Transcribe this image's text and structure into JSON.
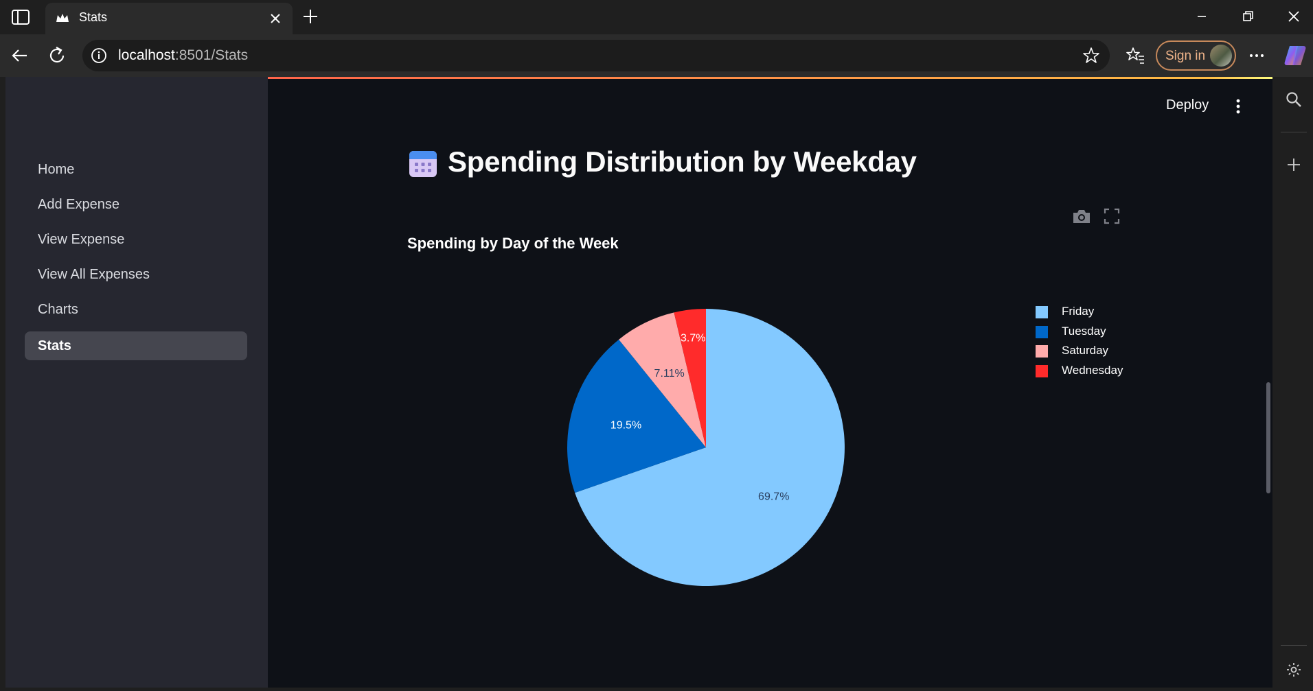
{
  "browser": {
    "tab_title": "Stats",
    "address_host": "localhost",
    "address_rest": ":8501/Stats",
    "sign_in_label": "Sign in"
  },
  "sidebar": {
    "items": [
      {
        "label": "Home",
        "active": false
      },
      {
        "label": "Add Expense",
        "active": false
      },
      {
        "label": "View Expense",
        "active": false
      },
      {
        "label": "View All Expenses",
        "active": false
      },
      {
        "label": "Charts",
        "active": false
      },
      {
        "label": "Stats",
        "active": true
      }
    ]
  },
  "header": {
    "deploy_label": "Deploy",
    "icon": "calendar-icon"
  },
  "main": {
    "title": "Spending Distribution by Weekday"
  },
  "colors": {
    "friday": "#83c9ff",
    "tuesday": "#0068c9",
    "saturday": "#ffabab",
    "wednesday": "#ff2b2b",
    "background": "#0e1117",
    "sidebar": "#262730"
  },
  "chart_data": {
    "type": "pie",
    "title": "Spending by Day of the Week",
    "labels": [
      "Friday",
      "Tuesday",
      "Saturday",
      "Wednesday"
    ],
    "percent_labels": [
      "69.7%",
      "19.5%",
      "7.11%",
      "3.7%"
    ],
    "values": [
      69.7,
      19.5,
      7.11,
      3.7
    ],
    "colors": [
      "#83c9ff",
      "#0068c9",
      "#ffabab",
      "#ff2b2b"
    ],
    "legend_position": "top-right"
  }
}
